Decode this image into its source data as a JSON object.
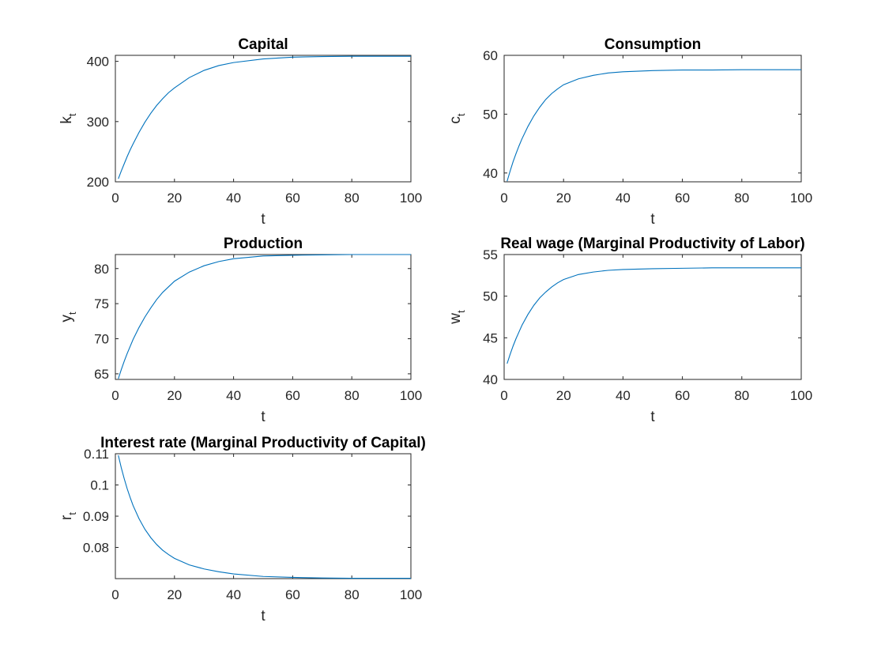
{
  "chart_data": [
    {
      "type": "line",
      "title": "Capital",
      "xlabel": "t",
      "ylabel": {
        "base": "k",
        "sub": "t"
      },
      "xlim": [
        0,
        100
      ],
      "ylim": [
        200,
        410
      ],
      "xticks": [
        0,
        20,
        40,
        60,
        80,
        100
      ],
      "yticks": [
        200,
        300,
        400
      ],
      "ytick_labels": [
        "200",
        "300",
        "400"
      ],
      "series": [
        {
          "color": "#0072bd",
          "x": [
            1,
            2,
            3,
            4,
            5,
            6,
            8,
            10,
            12,
            14,
            16,
            18,
            20,
            25,
            30,
            35,
            40,
            50,
            60,
            70,
            80,
            90,
            100
          ],
          "y": [
            205,
            218,
            230,
            242,
            253,
            263,
            282,
            299,
            314,
            327,
            338,
            348,
            356,
            373,
            385,
            393,
            398,
            404,
            407,
            408,
            408.5,
            408.5,
            408.5
          ]
        }
      ]
    },
    {
      "type": "line",
      "title": "Consumption",
      "xlabel": "t",
      "ylabel": {
        "base": "c",
        "sub": "t"
      },
      "xlim": [
        0,
        100
      ],
      "ylim": [
        38.5,
        60
      ],
      "xticks": [
        0,
        20,
        40,
        60,
        80,
        100
      ],
      "yticks": [
        40,
        50,
        60
      ],
      "ytick_labels": [
        "40",
        "50",
        "60"
      ],
      "series": [
        {
          "color": "#0072bd",
          "x": [
            1,
            2,
            3,
            4,
            5,
            6,
            8,
            10,
            12,
            14,
            16,
            18,
            20,
            25,
            30,
            35,
            40,
            50,
            60,
            70,
            80,
            90,
            100
          ],
          "y": [
            38.6,
            40.3,
            41.9,
            43.3,
            44.6,
            45.8,
            47.9,
            49.7,
            51.2,
            52.5,
            53.5,
            54.3,
            55.0,
            56.0,
            56.6,
            57.0,
            57.2,
            57.4,
            57.5,
            57.5,
            57.55,
            57.55,
            57.55
          ]
        }
      ]
    },
    {
      "type": "line",
      "title": "Production",
      "xlabel": "t",
      "ylabel": {
        "base": "y",
        "sub": "t"
      },
      "xlim": [
        0,
        100
      ],
      "ylim": [
        64.2,
        82
      ],
      "xticks": [
        0,
        20,
        40,
        60,
        80,
        100
      ],
      "yticks": [
        65,
        70,
        75,
        80
      ],
      "ytick_labels": [
        "65",
        "70",
        "75",
        "80"
      ],
      "series": [
        {
          "color": "#0072bd",
          "x": [
            1,
            2,
            3,
            4,
            5,
            6,
            8,
            10,
            12,
            14,
            16,
            18,
            20,
            25,
            30,
            35,
            40,
            50,
            60,
            70,
            80,
            90,
            100
          ],
          "y": [
            64.3,
            65.6,
            66.8,
            67.9,
            68.9,
            69.9,
            71.6,
            73.1,
            74.4,
            75.6,
            76.6,
            77.4,
            78.2,
            79.5,
            80.4,
            81.0,
            81.4,
            81.8,
            81.9,
            81.95,
            82.0,
            82.0,
            82.0
          ]
        }
      ]
    },
    {
      "type": "line",
      "title": "Real wage (Marginal Productivity of Labor)",
      "xlabel": "t",
      "ylabel": {
        "base": "w",
        "sub": "t"
      },
      "xlim": [
        0,
        100
      ],
      "ylim": [
        40,
        55
      ],
      "xticks": [
        0,
        20,
        40,
        60,
        80,
        100
      ],
      "yticks": [
        40,
        45,
        50,
        55
      ],
      "ytick_labels": [
        "40",
        "45",
        "50",
        "55"
      ],
      "series": [
        {
          "color": "#0072bd",
          "x": [
            1,
            2,
            3,
            4,
            5,
            6,
            8,
            10,
            12,
            14,
            16,
            18,
            20,
            25,
            30,
            35,
            40,
            50,
            60,
            70,
            80,
            90,
            100
          ],
          "y": [
            41.9,
            43.0,
            44.0,
            44.9,
            45.7,
            46.5,
            47.8,
            48.9,
            49.8,
            50.5,
            51.1,
            51.6,
            52.0,
            52.6,
            52.9,
            53.1,
            53.2,
            53.3,
            53.35,
            53.4,
            53.4,
            53.4,
            53.4
          ]
        }
      ]
    },
    {
      "type": "line",
      "title": "Interest rate (Marginal Productivity of Capital)",
      "xlabel": "t",
      "ylabel": {
        "base": "r",
        "sub": "t"
      },
      "xlim": [
        0,
        100
      ],
      "ylim": [
        0.07,
        0.11
      ],
      "xticks": [
        0,
        20,
        40,
        60,
        80,
        100
      ],
      "yticks": [
        0.08,
        0.09,
        0.1,
        0.11
      ],
      "ytick_labels": [
        "0.08",
        "0.09",
        "0.1",
        "0.11"
      ],
      "series": [
        {
          "color": "#0072bd",
          "x": [
            1,
            2,
            3,
            4,
            5,
            6,
            8,
            10,
            12,
            14,
            16,
            18,
            20,
            25,
            30,
            35,
            40,
            50,
            60,
            70,
            80,
            90,
            100
          ],
          "y": [
            0.1095,
            0.1055,
            0.102,
            0.0988,
            0.096,
            0.0934,
            0.0892,
            0.0858,
            0.0831,
            0.0809,
            0.0791,
            0.0777,
            0.0765,
            0.0744,
            0.0731,
            0.0722,
            0.0715,
            0.0707,
            0.0704,
            0.0702,
            0.0701,
            0.0701,
            0.0701
          ]
        }
      ]
    }
  ]
}
